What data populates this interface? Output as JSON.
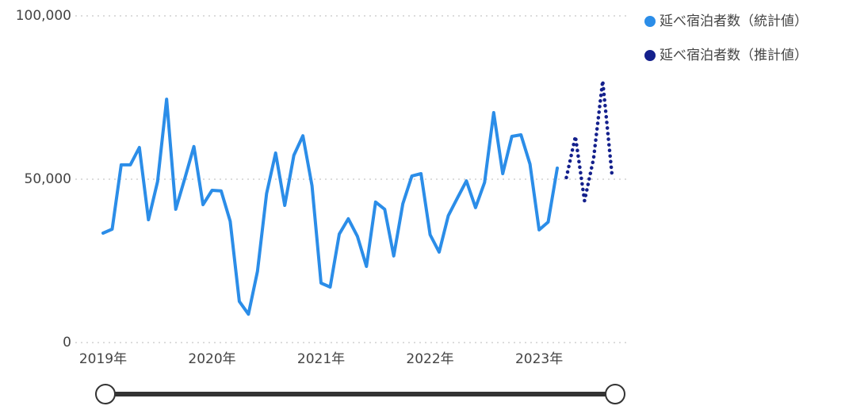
{
  "chart_data": {
    "type": "line",
    "categories": [
      "2019年",
      null,
      null,
      null,
      null,
      null,
      null,
      null,
      null,
      null,
      null,
      null,
      "2020年",
      null,
      null,
      null,
      null,
      null,
      null,
      null,
      null,
      null,
      null,
      null,
      "2021年",
      null,
      null,
      null,
      null,
      null,
      null,
      null,
      null,
      null,
      null,
      null,
      "2022年",
      null,
      null,
      null,
      null,
      null,
      null,
      null,
      null,
      null,
      null,
      null,
      "2023年",
      null,
      null,
      null,
      null,
      null,
      null,
      null,
      null
    ],
    "series": [
      {
        "name": "延べ宿泊者数（統計値）",
        "color": "#2b8de8",
        "style": "solid",
        "values": [
          33500,
          34700,
          54400,
          54400,
          59700,
          37600,
          49300,
          74500,
          40800,
          50200,
          60000,
          42200,
          46600,
          46400,
          37100,
          12600,
          8700,
          21800,
          45600,
          58000,
          42000,
          57300,
          63300,
          48000,
          18200,
          17000,
          33200,
          37900,
          32500,
          23300,
          43000,
          40800,
          26500,
          42500,
          51000,
          51700,
          33000,
          27700,
          38800,
          44200,
          49500,
          41300,
          49000,
          70400,
          51700,
          63100,
          63600,
          54600,
          34500,
          36900,
          53400,
          null,
          null,
          null,
          null,
          null,
          null
        ]
      },
      {
        "name": "延べ宿泊者数（推計値）",
        "color": "#14208c",
        "style": "dotted",
        "values": [
          null,
          null,
          null,
          null,
          null,
          null,
          null,
          null,
          null,
          null,
          null,
          null,
          null,
          null,
          null,
          null,
          null,
          null,
          null,
          null,
          null,
          null,
          null,
          null,
          null,
          null,
          null,
          null,
          null,
          null,
          null,
          null,
          null,
          null,
          null,
          null,
          null,
          null,
          null,
          null,
          null,
          null,
          null,
          null,
          null,
          null,
          null,
          null,
          null,
          null,
          null,
          50500,
          63100,
          43400,
          56300,
          80100,
          51900
        ]
      }
    ],
    "ylim": [
      0,
      100000
    ],
    "yticks": [
      0,
      {
        "value": 50000,
        "label": "50,000"
      },
      {
        "value": 100000,
        "label": "100,000"
      }
    ],
    "grid": true,
    "legend": "top-right"
  }
}
